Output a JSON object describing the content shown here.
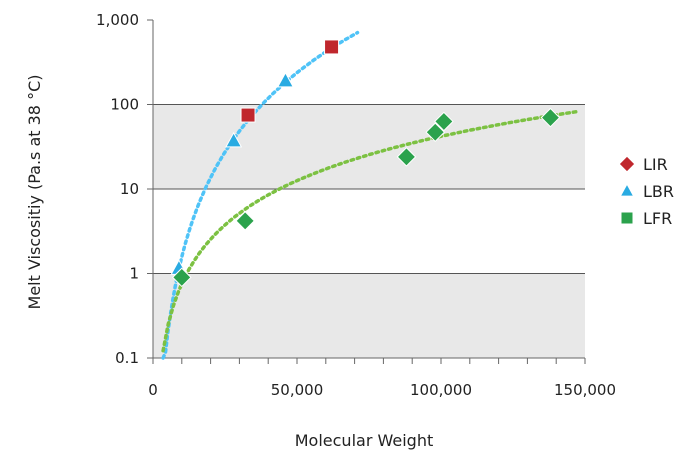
{
  "chart_data": {
    "type": "scatter",
    "xlabel": "Molecular Weight",
    "ylabel": "Melt Viscositiy (Pa.s at 38 °C)",
    "x_ticks": [
      "0",
      "50,000",
      "100,000",
      "150,000"
    ],
    "y_ticks": [
      "0.1",
      "1",
      "10",
      "100",
      "1,000"
    ],
    "xlim": [
      0,
      150000
    ],
    "ylim": [
      0.1,
      1000
    ],
    "y_scale": "log",
    "grid": "horizontal bands",
    "legend_position": "right",
    "series": [
      {
        "name": "LIR",
        "legend_marker": "diamond",
        "plot_marker": "square",
        "color": "#c0272d",
        "points": [
          {
            "x": 33000,
            "y": 75
          },
          {
            "x": 62000,
            "y": 480
          }
        ]
      },
      {
        "name": "LBR",
        "marker": "triangle",
        "color": "#29abe2",
        "points": [
          {
            "x": 9000,
            "y": 1.15
          },
          {
            "x": 28000,
            "y": 37
          },
          {
            "x": 46000,
            "y": 190
          }
        ],
        "trendline": {
          "style": "dotted",
          "color": "#4fc3f7",
          "x_range": [
            3500,
            71000
          ]
        }
      },
      {
        "name": "LFR",
        "legend_marker": "square",
        "plot_marker": "diamond",
        "color": "#2ba24c",
        "points": [
          {
            "x": 10000,
            "y": 0.9
          },
          {
            "x": 32000,
            "y": 4.2
          },
          {
            "x": 88000,
            "y": 24
          },
          {
            "x": 98000,
            "y": 47
          },
          {
            "x": 101000,
            "y": 63
          },
          {
            "x": 138000,
            "y": 70
          }
        ],
        "trendline": {
          "style": "dotted",
          "color": "#7cc142",
          "x_range": [
            3500,
            147000
          ]
        }
      }
    ]
  }
}
